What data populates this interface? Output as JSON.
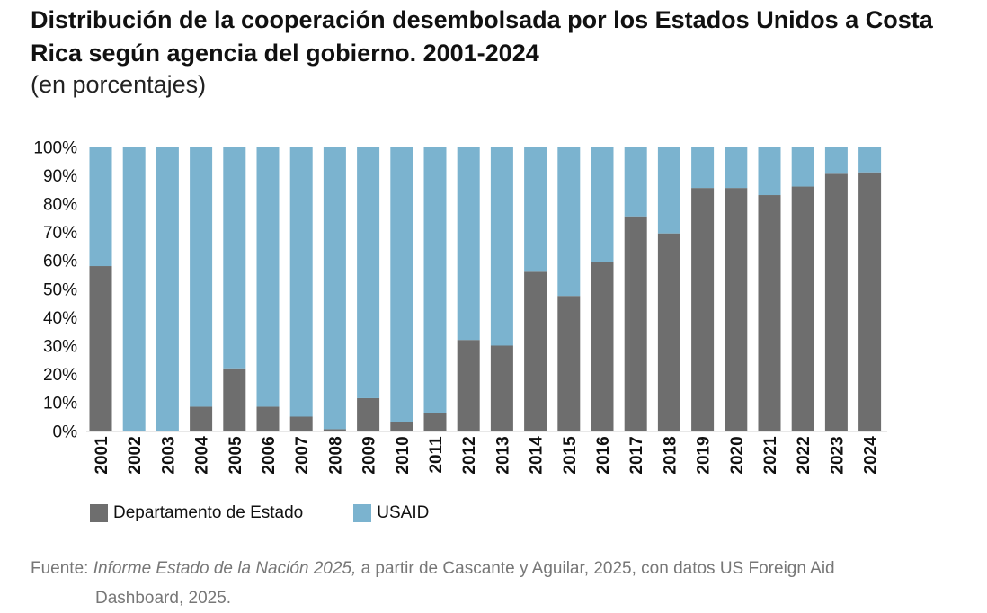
{
  "chart_data": {
    "type": "bar",
    "stacked": true,
    "title": "Distribución de la cooperación desembolsada por los Estados Unidos a Costa Rica según agencia del gobierno. 2001-2024",
    "subtitle": "(en porcentajes)",
    "categories": [
      "2001",
      "2002",
      "2003",
      "2004",
      "2005",
      "2006",
      "2007",
      "2008",
      "2009",
      "2010",
      "2011",
      "2012",
      "2013",
      "2014",
      "2015",
      "2016",
      "2017",
      "2018",
      "2019",
      "2020",
      "2021",
      "2022",
      "2023",
      "2024"
    ],
    "series": [
      {
        "name": "Departamento de Estado",
        "color": "#6e6e6e",
        "values": [
          58,
          0,
          0,
          8.5,
          22,
          8.5,
          5,
          0.6,
          11.5,
          3,
          6.3,
          32,
          30,
          56,
          47.5,
          59.5,
          75.5,
          69.5,
          85.5,
          85.5,
          83,
          86,
          90.5,
          91
        ]
      },
      {
        "name": "USAID",
        "color": "#7bb3cf",
        "values": [
          42,
          100,
          100,
          91.5,
          78,
          91.5,
          95,
          99.4,
          88.5,
          97,
          93.7,
          68,
          70,
          44,
          52.5,
          40.5,
          24.5,
          30.5,
          14.5,
          14.5,
          17,
          14,
          9.5,
          9
        ]
      }
    ],
    "yticks": [
      "0%",
      "10%",
      "20%",
      "30%",
      "40%",
      "50%",
      "60%",
      "70%",
      "80%",
      "90%",
      "100%"
    ],
    "ylim": [
      0,
      100
    ],
    "grid": false,
    "legend": "bottom-left"
  },
  "source": {
    "prefix": "Fuente: ",
    "italic": "Informe Estado de la Nación 2025,",
    "rest": " a partir de Cascante y Aguilar, 2025, con datos US Foreign Aid",
    "line2": "Dashboard, 2025."
  }
}
